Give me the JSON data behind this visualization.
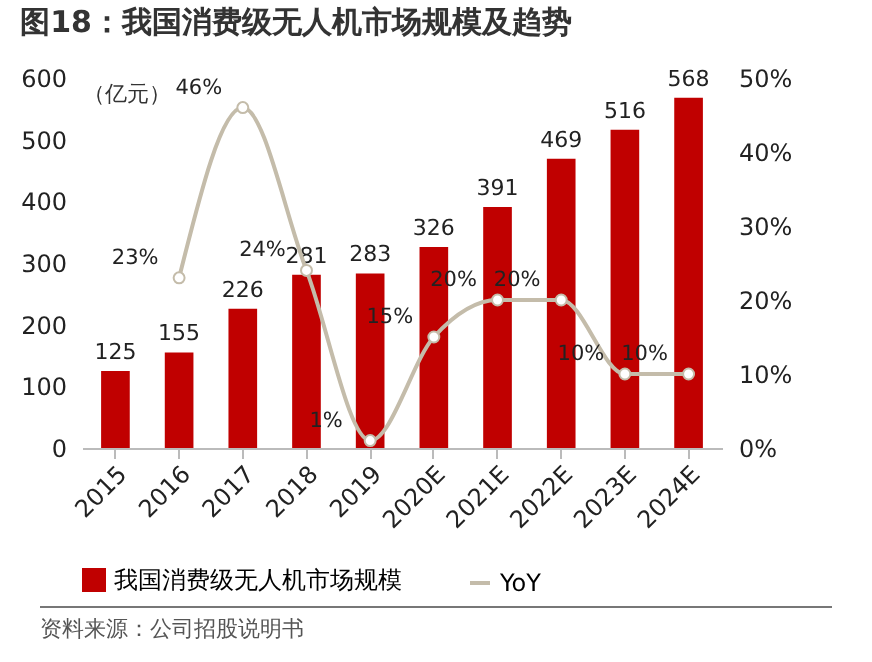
{
  "chart_data": {
    "type": "bar",
    "title": "图18：我国消费级无人机市场规模及趋势",
    "ylabel": "（亿元）",
    "categories": [
      "2015",
      "2016",
      "2017",
      "2018",
      "2019",
      "2020E",
      "2021E",
      "2022E",
      "2023E",
      "2024E"
    ],
    "series": [
      {
        "name": "我国消费级无人机市场规模",
        "color": "#c00000",
        "values": [
          125,
          155,
          226,
          281,
          283,
          326,
          391,
          469,
          516,
          568
        ],
        "value_labels": [
          "125",
          "155",
          "226",
          "281",
          "283",
          "326",
          "391",
          "469",
          "516",
          "568"
        ]
      },
      {
        "name": "YoY",
        "type": "line",
        "axis": "y2",
        "color": "#c4bcaa",
        "values": [
          null,
          23,
          46,
          24,
          1,
          15,
          20,
          20,
          10,
          10
        ],
        "value_labels": [
          null,
          "23%",
          "46%",
          "24%",
          "1%",
          "15%",
          "20%",
          "20%",
          "10%",
          "10%"
        ]
      }
    ],
    "ylim": [
      0,
      600
    ],
    "yticks": [
      0,
      100,
      200,
      300,
      400,
      500,
      600
    ],
    "y2lim": [
      0,
      50
    ],
    "y2ticks": [
      {
        "value": 0,
        "label": "0%"
      },
      {
        "value": 10,
        "label": "10%"
      },
      {
        "value": 20,
        "label": "20%"
      },
      {
        "value": 30,
        "label": "30%"
      },
      {
        "value": 40,
        "label": "40%"
      },
      {
        "value": 50,
        "label": "50%"
      }
    ],
    "marker": "circle",
    "legend": "bottom",
    "grid": false,
    "annotations": [
      "资料来源：公司招股说明书"
    ]
  }
}
